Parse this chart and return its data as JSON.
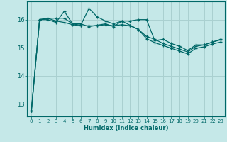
{
  "xlabel": "Humidex (Indice chaleur)",
  "bg_color": "#c5e8e8",
  "grid_color": "#aad0d0",
  "line_color": "#006868",
  "xlim": [
    -0.5,
    23.5
  ],
  "ylim": [
    12.55,
    16.65
  ],
  "yticks": [
    13,
    14,
    15,
    16
  ],
  "xticks": [
    0,
    1,
    2,
    3,
    4,
    5,
    6,
    7,
    8,
    9,
    10,
    11,
    12,
    13,
    14,
    15,
    16,
    17,
    18,
    19,
    20,
    21,
    22,
    23
  ],
  "series": [
    [
      12.75,
      16.0,
      16.0,
      15.9,
      16.3,
      15.85,
      15.8,
      16.4,
      16.1,
      15.95,
      15.85,
      15.95,
      15.95,
      16.0,
      16.0,
      15.25,
      15.3,
      15.15,
      15.05,
      14.9,
      15.1,
      15.1,
      15.2,
      15.3
    ],
    [
      12.75,
      16.0,
      16.05,
      16.05,
      16.05,
      15.85,
      15.85,
      15.75,
      15.8,
      15.85,
      15.75,
      15.95,
      15.8,
      15.65,
      15.4,
      15.3,
      15.15,
      15.05,
      14.95,
      14.85,
      15.05,
      15.1,
      15.2,
      15.28
    ],
    [
      12.75,
      16.0,
      16.05,
      15.95,
      15.9,
      15.82,
      15.78,
      15.78,
      15.78,
      15.82,
      15.78,
      15.82,
      15.78,
      15.65,
      15.32,
      15.18,
      15.08,
      14.98,
      14.88,
      14.78,
      14.98,
      15.03,
      15.13,
      15.2
    ]
  ]
}
